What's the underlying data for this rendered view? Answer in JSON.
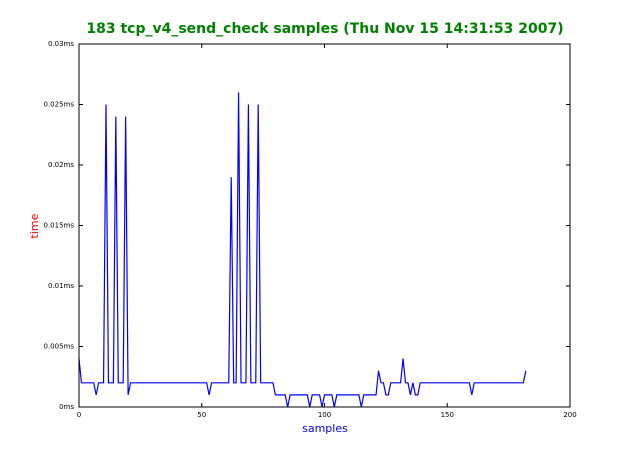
{
  "chart_data": {
    "type": "line",
    "title": "183 tcp_v4_send_check samples (Thu Nov 15 14:31:53 2007)",
    "xlabel": "samples",
    "ylabel": "time",
    "x": [
      0,
      1,
      2,
      3,
      4,
      5,
      6,
      7,
      8,
      9,
      10,
      11,
      12,
      13,
      14,
      15,
      16,
      17,
      18,
      19,
      20,
      21,
      22,
      23,
      24,
      25,
      26,
      27,
      28,
      29,
      30,
      31,
      32,
      33,
      34,
      35,
      36,
      37,
      38,
      39,
      40,
      41,
      42,
      43,
      44,
      45,
      46,
      47,
      48,
      49,
      50,
      51,
      52,
      53,
      54,
      55,
      56,
      57,
      58,
      59,
      60,
      61,
      62,
      63,
      64,
      65,
      66,
      67,
      68,
      69,
      70,
      71,
      72,
      73,
      74,
      75,
      76,
      77,
      78,
      79,
      80,
      81,
      82,
      83,
      84,
      85,
      86,
      87,
      88,
      89,
      90,
      91,
      92,
      93,
      94,
      95,
      96,
      97,
      98,
      99,
      100,
      101,
      102,
      103,
      104,
      105,
      106,
      107,
      108,
      109,
      110,
      111,
      112,
      113,
      114,
      115,
      116,
      117,
      118,
      119,
      120,
      121,
      122,
      123,
      124,
      125,
      126,
      127,
      128,
      129,
      130,
      131,
      132,
      133,
      134,
      135,
      136,
      137,
      138,
      139,
      140,
      141,
      142,
      143,
      144,
      145,
      146,
      147,
      148,
      149,
      150,
      151,
      152,
      153,
      154,
      155,
      156,
      157,
      158,
      159,
      160,
      161,
      162,
      163,
      164,
      165,
      166,
      167,
      168,
      169,
      170,
      171,
      172,
      173,
      174,
      175,
      176,
      177,
      178,
      179,
      180,
      181,
      182
    ],
    "series": [
      {
        "color": "#0000ff",
        "values": [
          0.004,
          0.002,
          0.002,
          0.002,
          0.002,
          0.002,
          0.002,
          0.001,
          0.002,
          0.002,
          0.002,
          0.025,
          0.002,
          0.002,
          0.002,
          0.024,
          0.002,
          0.002,
          0.002,
          0.024,
          0.001,
          0.002,
          0.002,
          0.002,
          0.002,
          0.002,
          0.002,
          0.002,
          0.002,
          0.002,
          0.002,
          0.002,
          0.002,
          0.002,
          0.002,
          0.002,
          0.002,
          0.002,
          0.002,
          0.002,
          0.002,
          0.002,
          0.002,
          0.002,
          0.002,
          0.002,
          0.002,
          0.002,
          0.002,
          0.002,
          0.002,
          0.002,
          0.002,
          0.001,
          0.002,
          0.002,
          0.002,
          0.002,
          0.002,
          0.002,
          0.002,
          0.002,
          0.019,
          0.002,
          0.002,
          0.026,
          0.002,
          0.002,
          0.002,
          0.025,
          0.002,
          0.002,
          0.002,
          0.025,
          0.002,
          0.002,
          0.002,
          0.002,
          0.002,
          0.002,
          0.001,
          0.001,
          0.001,
          0.001,
          0.001,
          0,
          0.001,
          0.001,
          0.001,
          0.001,
          0.001,
          0.001,
          0.001,
          0.001,
          0,
          0.001,
          0.001,
          0.001,
          0.001,
          0,
          0.001,
          0.001,
          0.001,
          0.001,
          0,
          0.001,
          0.001,
          0.001,
          0.001,
          0.001,
          0.001,
          0.001,
          0.001,
          0.001,
          0.001,
          0,
          0.001,
          0.001,
          0.001,
          0.001,
          0.001,
          0.001,
          0.003,
          0.002,
          0.002,
          0.001,
          0.001,
          0.002,
          0.002,
          0.002,
          0.002,
          0.002,
          0.004,
          0.002,
          0.002,
          0.001,
          0.002,
          0.001,
          0.001,
          0.002,
          0.002,
          0.002,
          0.002,
          0.002,
          0.002,
          0.002,
          0.002,
          0.002,
          0.002,
          0.002,
          0.002,
          0.002,
          0.002,
          0.002,
          0.002,
          0.002,
          0.002,
          0.002,
          0.002,
          0.002,
          0.001,
          0.002,
          0.002,
          0.002,
          0.002,
          0.002,
          0.002,
          0.002,
          0.002,
          0.002,
          0.002,
          0.002,
          0.002,
          0.002,
          0.002,
          0.002,
          0.002,
          0.002,
          0.002,
          0.002,
          0.002,
          0.002,
          0.003
        ]
      }
    ],
    "xlim": [
      0,
      200
    ],
    "xticks": [
      0,
      50,
      100,
      150,
      200
    ],
    "ylim": [
      0,
      0.03
    ],
    "yticks": [
      {
        "value": 0,
        "label": "0ms"
      },
      {
        "value": 0.005,
        "label": "0.005ms"
      },
      {
        "value": 0.01,
        "label": "0.01ms"
      },
      {
        "value": 0.015,
        "label": "0.015ms"
      },
      {
        "value": 0.02,
        "label": "0.02ms"
      },
      {
        "value": 0.025,
        "label": "0.025ms"
      },
      {
        "value": 0.03,
        "label": "0.03ms"
      }
    ],
    "grid": false
  }
}
